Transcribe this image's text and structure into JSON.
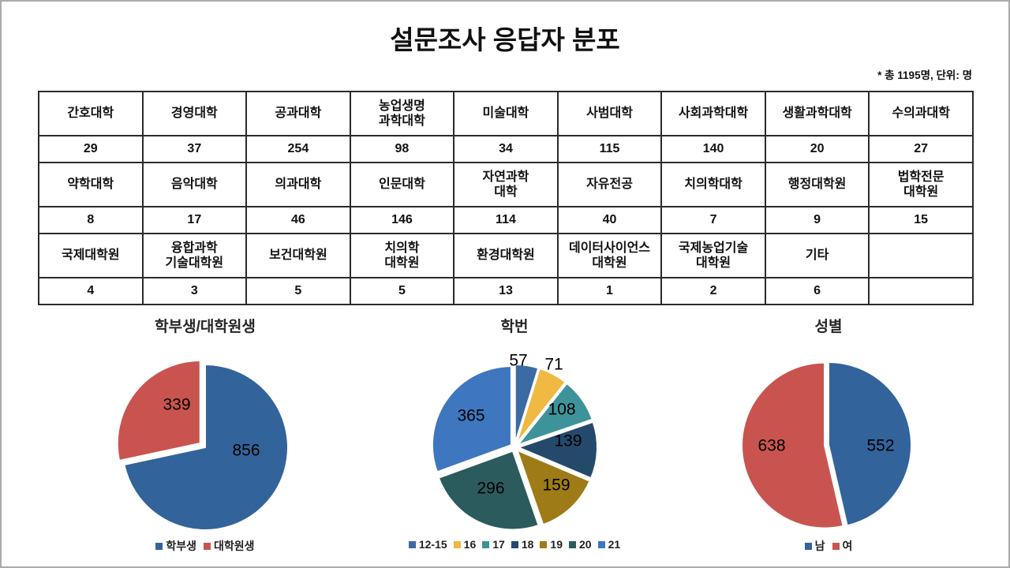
{
  "page": {
    "title": "설문조사 응답자 분포",
    "note": "* 총 1195명, 단위: 명"
  },
  "table": {
    "rows": [
      {
        "type": "name",
        "cells": [
          "간호대학",
          "경영대학",
          "공과대학",
          "농업생명\n과학대학",
          "미술대학",
          "사범대학",
          "사회과학대학",
          "생활과학대학",
          "수의과대학"
        ]
      },
      {
        "type": "value",
        "cells": [
          "29",
          "37",
          "254",
          "98",
          "34",
          "115",
          "140",
          "20",
          "27"
        ]
      },
      {
        "type": "name",
        "cells": [
          "약학대학",
          "음악대학",
          "의과대학",
          "인문대학",
          "자연과학\n대학",
          "자유전공",
          "치의학대학",
          "행정대학원",
          "법학전문\n대학원"
        ]
      },
      {
        "type": "value",
        "cells": [
          "8",
          "17",
          "46",
          "146",
          "114",
          "40",
          "7",
          "9",
          "15"
        ]
      },
      {
        "type": "name",
        "cells": [
          "국제대학원",
          "융합과학\n기술대학원",
          "보건대학원",
          "치의학\n대학원",
          "환경대학원",
          "데이터사이언스\n대학원",
          "국제농업기술\n대학원",
          "기타",
          ""
        ]
      },
      {
        "type": "value",
        "cells": [
          "4",
          "3",
          "5",
          "5",
          "13",
          "1",
          "2",
          "6",
          ""
        ]
      }
    ]
  },
  "chart_data": [
    {
      "type": "pie",
      "title": "학부생/대학원생",
      "labels": [
        "학부생",
        "대학원생"
      ],
      "values": [
        856,
        339
      ],
      "colors": [
        "#33639B",
        "#C9544F"
      ],
      "legend_position": "bottom",
      "label_color": "#000000"
    },
    {
      "type": "pie",
      "title": "학번",
      "labels": [
        "12-15",
        "16",
        "17",
        "18",
        "19",
        "20",
        "21"
      ],
      "values": [
        57,
        71,
        108,
        139,
        159,
        296,
        365
      ],
      "colors": [
        "#3C6BA3",
        "#EFB942",
        "#3D9399",
        "#24496B",
        "#9E7B16",
        "#2B5B5D",
        "#3E76BF"
      ],
      "legend_position": "bottom",
      "label_color": "#000000"
    },
    {
      "type": "pie",
      "title": "성별",
      "labels": [
        "남",
        "여"
      ],
      "values": [
        552,
        638
      ],
      "colors": [
        "#33639B",
        "#C9544F"
      ],
      "legend_position": "bottom",
      "label_color": "#000000"
    }
  ]
}
